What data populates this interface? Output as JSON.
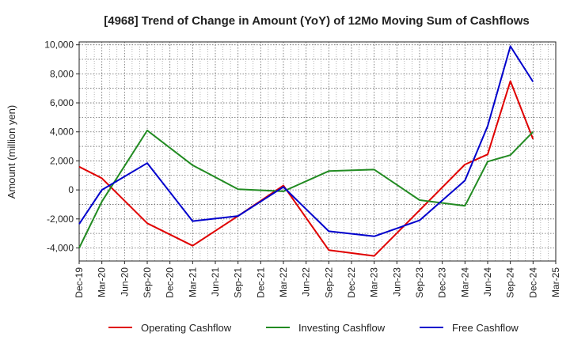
{
  "chart_data": {
    "type": "line",
    "title": "[4968]  Trend of Change in Amount (YoY) of 12Mo Moving Sum of Cashflows",
    "xlabel": "",
    "ylabel": "Amount (million yen)",
    "ylim": [
      -4900,
      10200
    ],
    "y_ticks": [
      -4000,
      -2000,
      0,
      2000,
      4000,
      6000,
      8000,
      10000
    ],
    "y_tick_labels": [
      "-4,000",
      "-2,000",
      "0",
      "2,000",
      "4,000",
      "6,000",
      "8,000",
      "10,000"
    ],
    "categories": [
      "Dec-19",
      "Mar-20",
      "Jun-20",
      "Sep-20",
      "Dec-20",
      "Mar-21",
      "Jun-21",
      "Sep-21",
      "Dec-21",
      "Mar-22",
      "Jun-22",
      "Sep-22",
      "Dec-22",
      "Mar-23",
      "Jun-23",
      "Sep-23",
      "Dec-23",
      "Mar-24",
      "Jun-24",
      "Sep-24",
      "Dec-24",
      "Mar-25"
    ],
    "grid": true,
    "legend_position": "bottom",
    "series": [
      {
        "name": "Operating Cashflow",
        "color": "#e00000",
        "points": [
          [
            0,
            1600
          ],
          [
            1,
            800
          ],
          [
            3,
            -2300
          ],
          [
            5,
            -3850
          ],
          [
            7,
            -1800
          ],
          [
            9,
            300
          ],
          [
            11,
            -4150
          ],
          [
            13,
            -4550
          ],
          [
            15,
            -1400
          ],
          [
            17,
            1750
          ],
          [
            18,
            2450
          ],
          [
            19,
            7500
          ],
          [
            20,
            3500
          ]
        ]
      },
      {
        "name": "Investing Cashflow",
        "color": "#228b22",
        "points": [
          [
            0,
            -4000
          ],
          [
            1,
            -800
          ],
          [
            3,
            4100
          ],
          [
            5,
            1700
          ],
          [
            7,
            50
          ],
          [
            9,
            -100
          ],
          [
            11,
            1300
          ],
          [
            13,
            1400
          ],
          [
            15,
            -700
          ],
          [
            17,
            -1100
          ],
          [
            18,
            1950
          ],
          [
            19,
            2400
          ],
          [
            20,
            4000
          ]
        ]
      },
      {
        "name": "Free Cashflow",
        "color": "#0000cc",
        "points": [
          [
            0,
            -2350
          ],
          [
            1,
            0
          ],
          [
            3,
            1850
          ],
          [
            5,
            -2150
          ],
          [
            7,
            -1800
          ],
          [
            9,
            200
          ],
          [
            11,
            -2850
          ],
          [
            13,
            -3200
          ],
          [
            15,
            -2100
          ],
          [
            17,
            650
          ],
          [
            18,
            4400
          ],
          [
            19,
            9900
          ],
          [
            20,
            7450
          ]
        ]
      }
    ]
  }
}
